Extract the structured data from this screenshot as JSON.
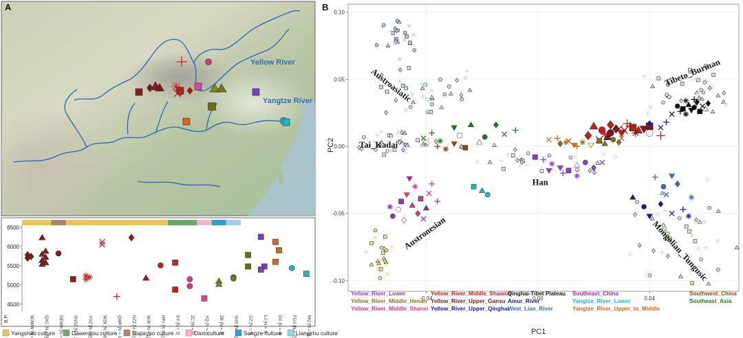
{
  "chart_data": [
    {
      "type": "map",
      "panel_label": "A",
      "river_labels": [
        "Yellow River",
        "Yangtze River"
      ]
    },
    {
      "type": "scatter",
      "panel_label": "",
      "ylabel": "B.P.",
      "yticks": [
        4500,
        5000,
        5500,
        6000,
        6500
      ],
      "ylim": [
        4300,
        6550
      ],
      "cultures": [
        {
          "name": "Yangshao culture",
          "color": "#e8c65a",
          "span": [
            0,
            10
          ]
        },
        {
          "name": "Dawenkou culture",
          "color": "#6aa86a",
          "span": [
            10,
            12
          ]
        },
        {
          "name": "Majiayao culture",
          "color": "#a8876a",
          "span": [
            2,
            3
          ]
        },
        {
          "name": "Daxi culture",
          "color": "#f4b6c2",
          "span": [
            12,
            13
          ]
        },
        {
          "name": "Songze culture",
          "color": "#2f9fc4",
          "span": [
            13,
            14
          ]
        },
        {
          "name": "Liangzhu culture",
          "color": "#9fd0ea",
          "span": [
            14,
            15
          ]
        }
      ],
      "sites": [
        {
          "label": "WJWW [N = 6]",
          "color": "#7a1a1a",
          "shape": "diamond",
          "values": [
            5780,
            5740,
            5700
          ]
        },
        {
          "label": "QXC [N = 9]",
          "color": "#8b1a1a",
          "shape": "triangle",
          "values": [
            6230,
            5880,
            5800,
            5720,
            5640,
            5580,
            5540
          ]
        },
        {
          "label": "DEWH [N = 2]",
          "color": "#8b1a1a",
          "shape": "circle",
          "values": [
            5820
          ]
        },
        {
          "label": "SNSZ [N = 2]",
          "color": "#8b1a1a",
          "shape": "square",
          "values": [
            5150
          ]
        },
        {
          "label": "YGZ [N = 9]",
          "color": "#d61f1f",
          "shape": "asterisk",
          "values": [
            5240,
            5200,
            5150
          ]
        },
        {
          "label": "WZK [N = 4]",
          "color": "#d61f1f",
          "shape": "x",
          "values": [
            6120,
            6050
          ]
        },
        {
          "label": "QWP [N = 1]",
          "color": "#d61f1f",
          "shape": "plus",
          "values": [
            4700
          ]
        },
        {
          "label": "NZZ [N = 1]",
          "color": "#b01010",
          "shape": "diamond",
          "values": [
            6230
          ]
        },
        {
          "label": "WJK [N = 1]",
          "color": "#b01010",
          "shape": "triangle",
          "values": [
            5180
          ]
        },
        {
          "label": "HPJ [N = 1]",
          "color": "#c41e1e",
          "shape": "circle",
          "values": [
            5510
          ]
        },
        {
          "label": "DY [N = 2]",
          "color": "#c41e1e",
          "shape": "square",
          "values": [
            5580,
            4880
          ]
        },
        {
          "label": "ZC [N = 5]",
          "color": "#d4388a",
          "shape": "circle",
          "values": [
            5150,
            4970
          ]
        },
        {
          "label": "YQ [N = 1]",
          "color": "#e0469a",
          "shape": "square",
          "values": [
            4650
          ]
        },
        {
          "label": "ZB [N = 3]",
          "color": "#7e8a1a",
          "shape": "triangle",
          "values": [
            5100,
            5020
          ]
        },
        {
          "label": "SHS [N = 6]",
          "color": "#6e7a18",
          "shape": "circle",
          "values": [
            5200,
            5170
          ]
        },
        {
          "label": "GZ [N = 5]",
          "color": "#6e6e10",
          "shape": "square",
          "values": [
            5780,
            5480
          ]
        },
        {
          "label": "LJ [N = 3]",
          "color": "#7b3fc4",
          "shape": "square",
          "values": [
            6250,
            5480,
            5400
          ]
        },
        {
          "label": "DX [N = 4]",
          "color": "#d2691e",
          "shape": "square",
          "values": [
            6120,
            5900,
            5600
          ]
        },
        {
          "label": "FGS [N = 2]",
          "color": "#27b4c9",
          "shape": "circle",
          "values": [
            5440
          ]
        },
        {
          "label": "MQ [N = 1]",
          "color": "#27b4c9",
          "shape": "square",
          "values": [
            5290
          ]
        }
      ]
    },
    {
      "type": "scatter",
      "panel_label": "B",
      "xlabel": "PC1",
      "ylabel": "PC2",
      "xticks": [
        "-0.04",
        "0.00",
        "0.04"
      ],
      "yticks": [
        "0.10",
        "0.05",
        "0.00",
        "-0.05",
        "-0.10"
      ],
      "xlim": [
        -0.068,
        0.072
      ],
      "ylim": [
        -0.108,
        0.106
      ],
      "region_labels": [
        {
          "text": "Austroasiatic",
          "x": -0.06,
          "y": 0.055,
          "rotate": 38
        },
        {
          "text": "Tibeto_Burman",
          "x": 0.046,
          "y": 0.045,
          "rotate": -22
        },
        {
          "text": "Tai_Kadai",
          "x": -0.064,
          "y": -0.001,
          "rotate": 0
        },
        {
          "text": "Han",
          "x": -0.002,
          "y": -0.029,
          "rotate": 0
        },
        {
          "text": "Austronesian",
          "x": -0.047,
          "y": -0.077,
          "rotate": -36
        },
        {
          "text": "Mongolian_Tungusic",
          "x": 0.041,
          "y": -0.058,
          "rotate": 48
        }
      ],
      "legend": [
        {
          "name": "Yellow_River_Lower",
          "color": "#8a3fd1"
        },
        {
          "name": "Yellow_River_Middle_Henan",
          "color": "#7a7a18"
        },
        {
          "name": "Yellow_River_Middle_Shanxi",
          "color": "#d4388a"
        },
        {
          "name": "Yellow_River_Middle_Shaanxi",
          "color": "#c41e1e"
        },
        {
          "name": "Yellow_River_Upper_Gansu",
          "color": "#7a1a1a"
        },
        {
          "name": "Yellow_River_Upper_Qinghai",
          "color": "#1a1aa0"
        },
        {
          "name": "Qinghai-Tibet Plateau",
          "color": "#111111"
        },
        {
          "name": "Amur_River",
          "color": "#1a1a8a"
        },
        {
          "name": "West_Liao_River",
          "color": "#3c6fb8"
        },
        {
          "name": "Southeast_China",
          "color": "#9a2fb0"
        },
        {
          "name": "Yangtze_River_Lower",
          "color": "#18b8c8"
        },
        {
          "name": "Yangtze_River_Upper_to_Middle",
          "color": "#d2691e"
        },
        {
          "name": "Southwest_China",
          "color": "#8a4a10"
        },
        {
          "name": "Southeast_Asia",
          "color": "#1e7a1e"
        }
      ],
      "series": [
        {
          "group": "Qinghai-Tibet Plateau",
          "color": "#111111",
          "points": [
            [
              0.052,
              0.028
            ],
            [
              0.054,
              0.031
            ],
            [
              0.056,
              0.029
            ],
            [
              0.057,
              0.033
            ],
            [
              0.059,
              0.03
            ],
            [
              0.051,
              0.026
            ],
            [
              0.053,
              0.024
            ],
            [
              0.055,
              0.027
            ],
            [
              0.058,
              0.026
            ],
            [
              0.06,
              0.028
            ],
            [
              0.05,
              0.03
            ],
            [
              0.061,
              0.032
            ],
            [
              0.048,
              0.024
            ],
            [
              0.056,
              0.035
            ],
            [
              0.053,
              0.034
            ]
          ]
        },
        {
          "group": "Yellow_River_Middle_Shaanxi",
          "color": "#c41e1e",
          "points": [
            [
              0.02,
              0.015
            ],
            [
              0.023,
              0.012
            ],
            [
              0.026,
              0.016
            ],
            [
              0.029,
              0.013
            ],
            [
              0.032,
              0.017
            ],
            [
              0.024,
              0.009
            ],
            [
              0.03,
              0.01
            ],
            [
              0.034,
              0.014
            ],
            [
              0.036,
              0.012
            ],
            [
              0.04,
              0.01
            ],
            [
              0.018,
              0.008
            ],
            [
              0.022,
              0.005
            ],
            [
              0.044,
              0.008
            ]
          ]
        },
        {
          "group": "Yellow_River_Upper_Gansu",
          "color": "#7a1a1a",
          "points": [
            [
              0.026,
              0.01
            ],
            [
              0.028,
              0.013
            ],
            [
              0.031,
              0.012
            ],
            [
              0.033,
              0.015
            ],
            [
              0.035,
              0.01
            ],
            [
              0.038,
              0.013
            ],
            [
              0.04,
              0.015
            ],
            [
              0.025,
              0.007
            ]
          ]
        },
        {
          "group": "Yellow_River_Middle_Henan",
          "color": "#7a7a18",
          "points": [
            [
              0.008,
              0.002
            ],
            [
              0.011,
              0.004
            ],
            [
              0.014,
              0.0
            ],
            [
              0.016,
              0.003
            ],
            [
              0.019,
              0.001
            ],
            [
              0.022,
              0.004
            ],
            [
              0.024,
              0.002
            ],
            [
              0.027,
              0.005
            ],
            [
              0.029,
              0.003
            ],
            [
              0.03,
              0.006
            ]
          ]
        },
        {
          "group": "Yangtze_River_Upper_to_Middle",
          "color": "#d2691e",
          "points": [
            [
              0.004,
              0.005
            ],
            [
              0.007,
              0.006
            ],
            [
              0.01,
              0.003
            ],
            [
              0.013,
              0.001
            ],
            [
              -0.04,
              0.003
            ]
          ]
        },
        {
          "group": "Yellow_River_Lower",
          "color": "#8a3fd1",
          "points": [
            [
              0.002,
              -0.01
            ],
            [
              0.005,
              -0.013
            ],
            [
              0.008,
              -0.016
            ],
            [
              0.011,
              -0.018
            ],
            [
              0.014,
              -0.014
            ],
            [
              0.017,
              -0.012
            ],
            [
              0.02,
              -0.016
            ],
            [
              0.023,
              -0.012
            ],
            [
              0.009,
              -0.02
            ],
            [
              0.014,
              -0.022
            ],
            [
              0.004,
              -0.018
            ],
            [
              -0.001,
              -0.008
            ]
          ]
        },
        {
          "group": "Yellow_River_Middle_Shanxi",
          "color": "#d4388a",
          "points": [
            [
              -0.044,
              -0.03
            ],
            [
              -0.047,
              -0.036
            ],
            [
              -0.042,
              -0.039
            ],
            [
              -0.045,
              -0.044
            ],
            [
              -0.05,
              -0.047
            ],
            [
              -0.043,
              -0.05
            ],
            [
              -0.039,
              -0.035
            ],
            [
              -0.038,
              -0.028
            ]
          ]
        },
        {
          "group": "Southeast_China",
          "color": "#9a2fb0",
          "points": [
            [
              -0.046,
              -0.024
            ],
            [
              -0.049,
              -0.041
            ],
            [
              -0.04,
              -0.046
            ],
            [
              -0.052,
              -0.052
            ],
            [
              -0.048,
              -0.055
            ],
            [
              -0.041,
              -0.054
            ],
            [
              -0.036,
              -0.041
            ],
            [
              -0.053,
              -0.045
            ]
          ]
        },
        {
          "group": "Yangtze_River_Lower",
          "color": "#18b8c8",
          "points": [
            [
              -0.023,
              -0.03
            ],
            [
              -0.02,
              -0.033
            ],
            [
              -0.018,
              -0.036
            ]
          ]
        },
        {
          "group": "Amur_River",
          "color": "#1a1a8a",
          "points": [
            [
              0.034,
              -0.038
            ],
            [
              0.038,
              -0.045
            ],
            [
              0.044,
              -0.043
            ],
            [
              0.048,
              -0.05
            ],
            [
              0.052,
              -0.047
            ],
            [
              0.054,
              -0.052
            ],
            [
              0.04,
              -0.052
            ]
          ]
        },
        {
          "group": "West_Liao_River",
          "color": "#3c6fb8",
          "points": [
            [
              0.045,
              -0.03
            ],
            [
              0.05,
              -0.028
            ],
            [
              0.046,
              -0.036
            ],
            [
              0.042,
              -0.023
            ],
            [
              0.055,
              -0.038
            ],
            [
              0.048,
              -0.022
            ]
          ]
        },
        {
          "group": "Yellow_River_Upper_Qinghai",
          "color": "#1a1aa0",
          "points": [
            [
              0.04,
              0.017
            ],
            [
              0.044,
              0.014
            ],
            [
              0.046,
              0.018
            ]
          ]
        },
        {
          "group": "Southeast_Asia",
          "color": "#1e7a1e",
          "points": [
            [
              -0.041,
              0.006
            ],
            [
              -0.038,
              0.01
            ],
            [
              -0.035,
              0.004
            ],
            [
              -0.03,
              0.014
            ],
            [
              -0.028,
              0.008
            ],
            [
              -0.024,
              0.016
            ],
            [
              -0.019,
              0.007
            ],
            [
              -0.015,
              0.016
            ],
            [
              -0.012,
              0.009
            ],
            [
              -0.008,
              0.012
            ]
          ]
        },
        {
          "group": "Southwest_China",
          "color": "#8a4a10",
          "points": [
            [
              -0.036,
              0.0
            ],
            [
              -0.033,
              -0.002
            ],
            [
              -0.03,
              0.002
            ],
            [
              -0.026,
              -0.001
            ],
            [
              -0.021,
              0.003
            ]
          ]
        }
      ]
    }
  ],
  "footer_legend": [
    "Yangshao culture",
    "Dawenkou culture",
    "Majiayao culture",
    "Daxi culture",
    "Songze culture",
    "Liangzhu culture"
  ]
}
